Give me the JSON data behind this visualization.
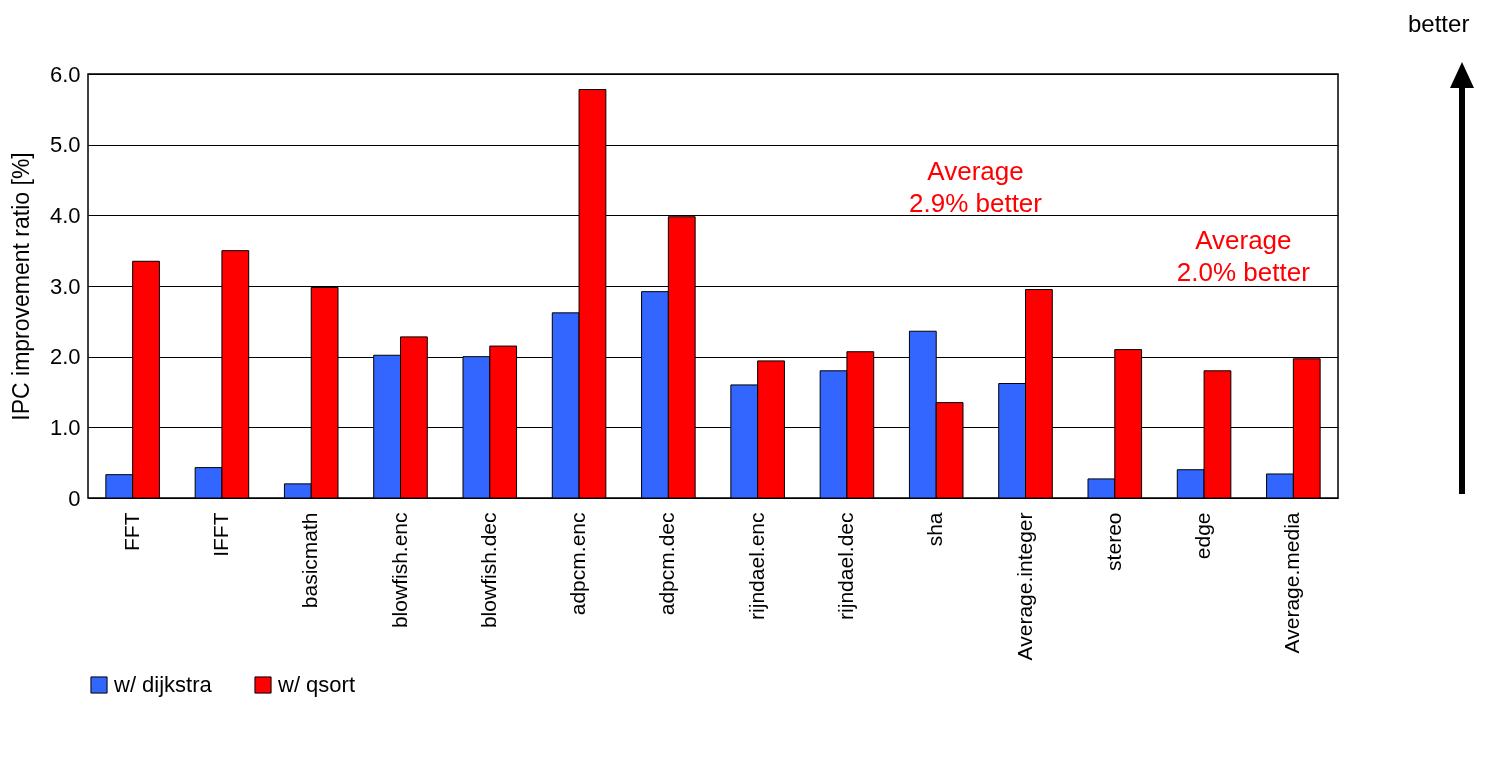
{
  "chart_data": {
    "type": "bar",
    "ylabel": "IPC improvement ratio [%]",
    "categories": [
      "FFT",
      "IFFT",
      "basicmath",
      "blowfish.enc",
      "blowfish.dec",
      "adpcm.enc",
      "adpcm.dec",
      "rijndael.enc",
      "rijndael.dec",
      "sha",
      "Average.integer",
      "stereo",
      "edge",
      "Average.media"
    ],
    "series": [
      {
        "name": "w/ dijkstra",
        "color": "#3366ff",
        "values": [
          0.33,
          0.43,
          0.2,
          2.02,
          2.0,
          2.62,
          2.92,
          1.6,
          1.8,
          2.36,
          1.62,
          0.27,
          0.4,
          0.34
        ]
      },
      {
        "name": "w/ qsort",
        "color": "#ff0000",
        "values": [
          3.35,
          3.5,
          2.98,
          2.28,
          2.15,
          5.78,
          3.98,
          1.94,
          2.07,
          1.35,
          2.95,
          2.1,
          1.8,
          1.97
        ]
      }
    ],
    "ylim": [
      0,
      6
    ],
    "yticks": [
      0,
      {
        "value": 1,
        "label": "1.0"
      },
      {
        "value": 2,
        "label": "2.0"
      },
      {
        "value": 3,
        "label": "3.0"
      },
      {
        "value": 4,
        "label": "4.0"
      },
      {
        "value": 5,
        "label": "5.0"
      },
      {
        "value": 6,
        "label": "6.0"
      }
    ],
    "grid": "y",
    "legend": "bottom left",
    "annotations": [
      {
        "text": "Average\n2.9% better",
        "x": "Average.integer",
        "y": 2.95
      },
      {
        "text": "Average\n2.0% better",
        "x": "Average.media",
        "y": 1.97
      },
      "better"
    ]
  }
}
